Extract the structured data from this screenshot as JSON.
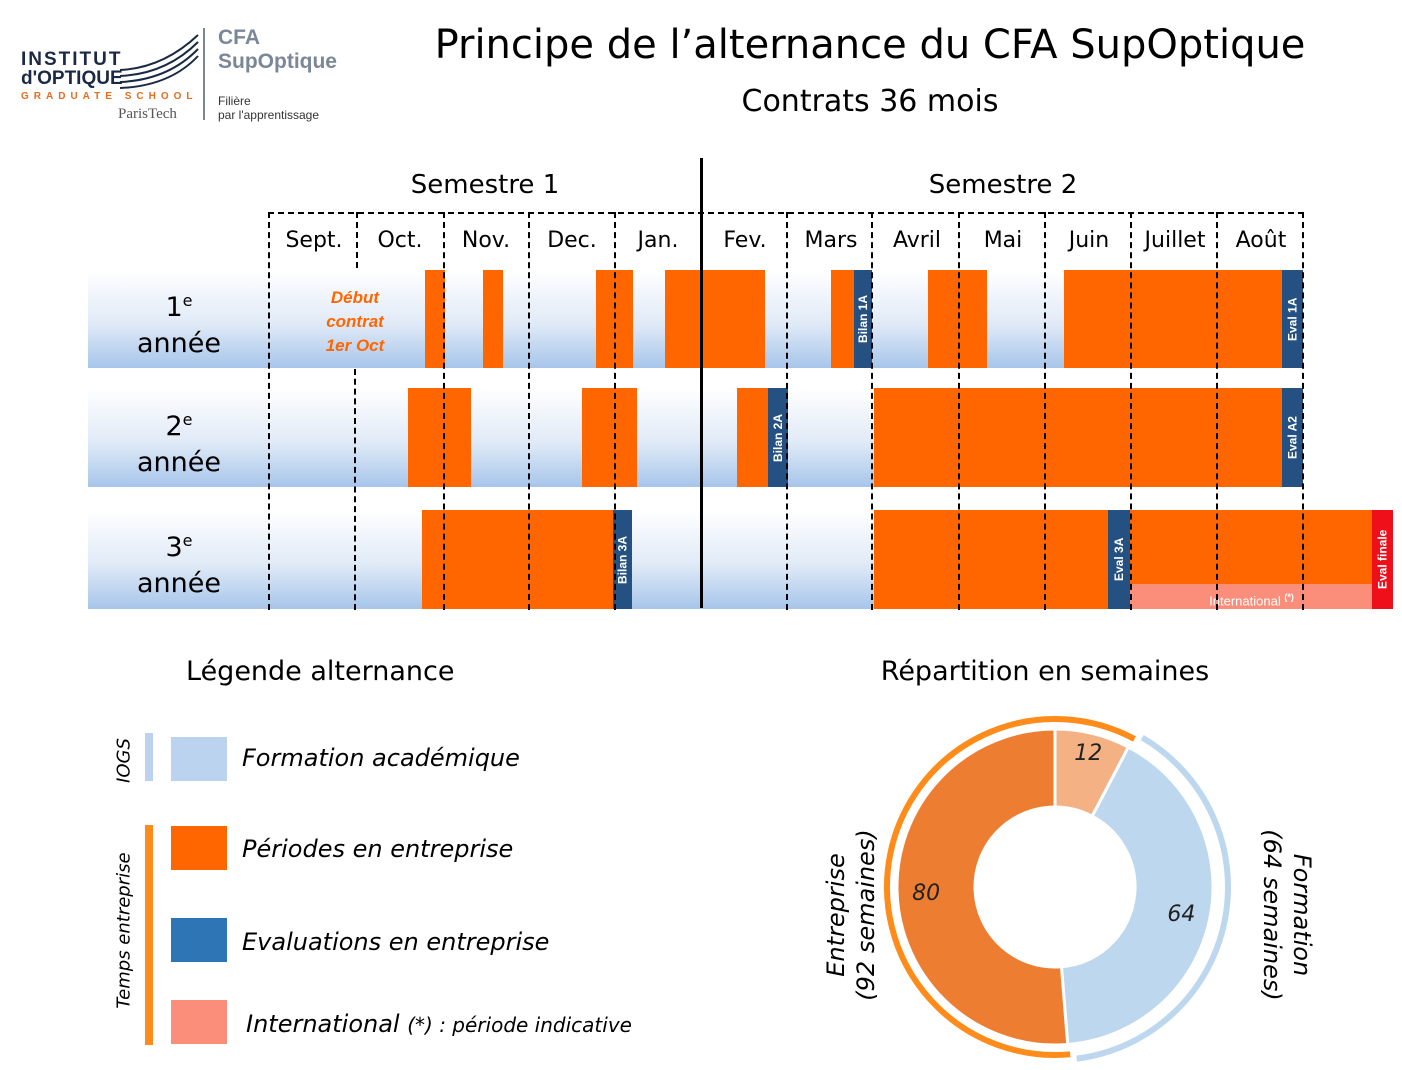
{
  "logo": {
    "institut": "INSTITUT",
    "doptique": "d'OPTIQUE",
    "graduate_school": "GRADUATE SCHOOL",
    "paristech": "ParisTech",
    "cfa": "CFA",
    "supoptique": "SupOptique",
    "filiere": "Filière",
    "apprentissage": "par l'apprentissage"
  },
  "title": "Principe de l’alternance du CFA SupOptique",
  "subtitle": "Contrats 36 mois",
  "semesters": [
    "Semestre 1",
    "Semestre 2"
  ],
  "months": [
    "Sept.",
    "Oct.",
    "Nov.",
    "Dec.",
    "Jan.",
    "Fev.",
    "Mars",
    "Avril",
    "Mai",
    "Juin",
    "Juillet",
    "Août"
  ],
  "years": [
    {
      "num": "1",
      "sup": "e",
      "word": "année"
    },
    {
      "num": "2",
      "sup": "e",
      "word": "année"
    },
    {
      "num": "3",
      "sup": "e",
      "word": "année"
    }
  ],
  "debut_contrat": [
    "Début",
    "contrat",
    "1er Oct"
  ],
  "evaluations": {
    "bilan_1a": "Bilan 1A",
    "eval_1a": "Eval 1A",
    "bilan_2a": "Bilan 2A",
    "eval_a2": "Eval A2",
    "bilan_3a": "Bilan 3A",
    "eval_3a": "Eval 3A",
    "eval_finale": "Eval finale"
  },
  "international_bar": "International",
  "international_star": "(*)",
  "legend": {
    "title": "Légende alternance",
    "iogs": "IOGS",
    "temps_entreprise": "Temps entreprise",
    "items": [
      {
        "label": "Formation académique",
        "color": "#bcd3f0"
      },
      {
        "label": "Périodes en entreprise",
        "color": "#ff6600"
      },
      {
        "label": "Evaluations en entreprise",
        "color": "#2e75b6"
      },
      {
        "label": "International",
        "color": "#fb8d7b"
      }
    ],
    "note": "(*) : période indicative"
  },
  "colors": {
    "entreprise": "#ff6600",
    "evaluation": "#245181",
    "international": "#fb8d7b",
    "eval_finale": "#ee0f1b",
    "academique": "#bcd3f0",
    "donut_entreprise": "#ed7d31",
    "donut_international": "#f4b183",
    "donut_formation": "#bdd7ee"
  },
  "chart_data": {
    "type": "pie",
    "title": "Répartition en semaines",
    "slices": [
      {
        "label": "",
        "value": 12,
        "color": "#f4b183"
      },
      {
        "label": "",
        "value": 64,
        "color": "#bdd7ee"
      },
      {
        "label": "",
        "value": 80,
        "color": "#ed7d31"
      }
    ],
    "groups": [
      {
        "name": "Entreprise",
        "detail": "(92 semaines)",
        "value": 92
      },
      {
        "name": "Formation",
        "detail": "(64 semaines)",
        "value": 64
      }
    ]
  }
}
